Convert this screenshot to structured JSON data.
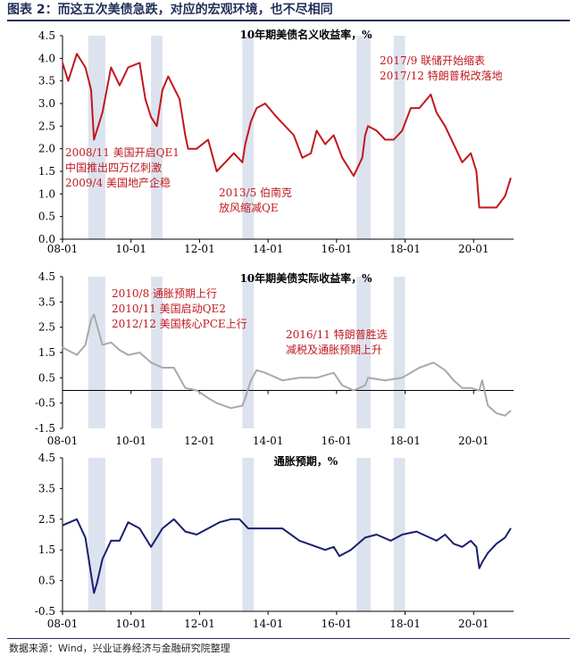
{
  "header": {
    "title": "图表 2：而这五次美债急跌，对应的宏观环境，也不尽相同"
  },
  "footer": {
    "source": "数据来源：Wind，兴业证券经济与金融研究院整理"
  },
  "colors": {
    "nominal": "#c0181e",
    "real": "#a9a9a9",
    "inflation": "#1a1f71",
    "shade": "#dde3ee"
  },
  "chart_data": [
    {
      "type": "line",
      "title": "10年期美债名义收益率，%",
      "x_ticks": [
        "08-01",
        "10-01",
        "12-01",
        "14-01",
        "16-01",
        "18-01",
        "20-01"
      ],
      "xlim": [
        "2008-01",
        "2021-03"
      ],
      "ylim": [
        0,
        4.5
      ],
      "y_ticks": [
        "0.0",
        "0.5",
        "1.0",
        "1.5",
        "2.0",
        "2.5",
        "3.0",
        "3.5",
        "4.0",
        "4.5"
      ],
      "y_tick_values": [
        0,
        0.5,
        1,
        1.5,
        2,
        2.5,
        3,
        3.5,
        4,
        4.5
      ],
      "series": [
        {
          "x": [
            "2008-01",
            "2008-03",
            "2008-06",
            "2008-09",
            "2008-11",
            "2008-12",
            "2009-03",
            "2009-06",
            "2009-09",
            "2009-12",
            "2010-04",
            "2010-06",
            "2010-08",
            "2010-10",
            "2010-12",
            "2011-02",
            "2011-06",
            "2011-08",
            "2011-09",
            "2011-12",
            "2012-04",
            "2012-07",
            "2012-10",
            "2013-01",
            "2013-04",
            "2013-05",
            "2013-07",
            "2013-09",
            "2013-12",
            "2014-04",
            "2014-07",
            "2014-10",
            "2015-01",
            "2015-04",
            "2015-06",
            "2015-09",
            "2015-12",
            "2016-03",
            "2016-07",
            "2016-10",
            "2016-11",
            "2016-12",
            "2017-03",
            "2017-06",
            "2017-09",
            "2017-12",
            "2018-03",
            "2018-06",
            "2018-10",
            "2018-12",
            "2019-03",
            "2019-06",
            "2019-09",
            "2019-12",
            "2020-02",
            "2020-03",
            "2020-06",
            "2020-09",
            "2020-12",
            "2021-02"
          ],
          "y": [
            3.9,
            3.5,
            4.1,
            3.8,
            3.3,
            2.2,
            2.8,
            3.8,
            3.4,
            3.8,
            3.9,
            3.1,
            2.7,
            2.5,
            3.3,
            3.6,
            3.1,
            2.3,
            2.0,
            2.0,
            2.2,
            1.5,
            1.7,
            1.9,
            1.7,
            2.1,
            2.6,
            2.9,
            3.0,
            2.7,
            2.5,
            2.3,
            1.8,
            1.9,
            2.4,
            2.1,
            2.3,
            1.8,
            1.4,
            1.8,
            2.3,
            2.5,
            2.4,
            2.2,
            2.2,
            2.4,
            2.9,
            2.9,
            3.2,
            2.8,
            2.5,
            2.1,
            1.7,
            1.9,
            1.5,
            0.7,
            0.7,
            0.7,
            0.95,
            1.35
          ]
        }
      ]
    },
    {
      "type": "line",
      "title": "10年期美债实际收益率，%",
      "x_ticks": [
        "08-01",
        "10-01",
        "12-01",
        "14-01",
        "16-01",
        "18-01",
        "20-01"
      ],
      "xlim": [
        "2008-01",
        "2021-03"
      ],
      "ylim": [
        -1.5,
        4.5
      ],
      "y_ticks": [
        "-1.5",
        "-0.5",
        "0.5",
        "1.5",
        "2.5",
        "3.5",
        "4.5"
      ],
      "y_tick_values": [
        -1.5,
        -0.5,
        0.5,
        1.5,
        2.5,
        3.5,
        4.5
      ],
      "series": [
        {
          "x": [
            "2008-01",
            "2008-06",
            "2008-09",
            "2008-11",
            "2008-12",
            "2009-03",
            "2009-06",
            "2009-09",
            "2009-12",
            "2010-04",
            "2010-08",
            "2010-12",
            "2011-04",
            "2011-08",
            "2011-12",
            "2012-04",
            "2012-07",
            "2012-12",
            "2013-04",
            "2013-05",
            "2013-07",
            "2013-09",
            "2013-12",
            "2014-06",
            "2014-12",
            "2015-06",
            "2015-12",
            "2016-03",
            "2016-07",
            "2016-11",
            "2016-12",
            "2017-06",
            "2017-12",
            "2018-06",
            "2018-11",
            "2019-03",
            "2019-06",
            "2019-09",
            "2019-12",
            "2020-03",
            "2020-04",
            "2020-06",
            "2020-09",
            "2020-12",
            "2021-02"
          ],
          "y": [
            1.7,
            1.4,
            1.8,
            2.8,
            3.0,
            1.8,
            1.9,
            1.6,
            1.4,
            1.5,
            1.1,
            0.9,
            0.9,
            0.1,
            0.0,
            -0.3,
            -0.5,
            -0.7,
            -0.6,
            -0.3,
            0.4,
            0.8,
            0.7,
            0.4,
            0.5,
            0.5,
            0.7,
            0.2,
            0.0,
            0.2,
            0.5,
            0.4,
            0.5,
            0.9,
            1.1,
            0.8,
            0.4,
            0.1,
            0.1,
            0.0,
            0.4,
            -0.6,
            -0.9,
            -1.0,
            -0.8
          ]
        }
      ]
    },
    {
      "type": "line",
      "title": "通胀预期，%",
      "x_ticks": [
        "08-01",
        "10-01",
        "12-01",
        "14-01",
        "16-01",
        "18-01",
        "20-01"
      ],
      "xlim": [
        "2008-01",
        "2021-03"
      ],
      "ylim": [
        -0.5,
        4.5
      ],
      "y_ticks": [
        "-0.5",
        "0.5",
        "1.5",
        "2.5",
        "3.5",
        "4.5"
      ],
      "y_tick_values": [
        -0.5,
        0.5,
        1.5,
        2.5,
        3.5,
        4.5
      ],
      "series": [
        {
          "x": [
            "2008-01",
            "2008-06",
            "2008-09",
            "2008-11",
            "2008-12",
            "2009-01",
            "2009-03",
            "2009-06",
            "2009-09",
            "2009-12",
            "2010-04",
            "2010-08",
            "2010-12",
            "2011-04",
            "2011-08",
            "2011-12",
            "2012-04",
            "2012-08",
            "2012-12",
            "2013-03",
            "2013-06",
            "2013-09",
            "2013-12",
            "2014-06",
            "2014-12",
            "2015-03",
            "2015-09",
            "2015-12",
            "2016-02",
            "2016-06",
            "2016-11",
            "2017-03",
            "2017-08",
            "2017-12",
            "2018-05",
            "2018-12",
            "2019-03",
            "2019-06",
            "2019-09",
            "2019-12",
            "2020-02",
            "2020-03",
            "2020-04",
            "2020-06",
            "2020-09",
            "2020-12",
            "2021-02"
          ],
          "y": [
            2.3,
            2.5,
            1.9,
            0.7,
            0.1,
            0.4,
            1.2,
            1.8,
            1.8,
            2.4,
            2.2,
            1.6,
            2.2,
            2.5,
            2.1,
            2.0,
            2.2,
            2.4,
            2.5,
            2.5,
            2.2,
            2.2,
            2.2,
            2.2,
            1.8,
            1.7,
            1.5,
            1.6,
            1.3,
            1.5,
            1.9,
            2.0,
            1.8,
            2.0,
            2.1,
            1.8,
            2.0,
            1.7,
            1.6,
            1.8,
            1.6,
            0.9,
            1.1,
            1.4,
            1.7,
            1.9,
            2.2
          ]
        }
      ]
    }
  ],
  "shade_periods": [
    {
      "start": "2008-10",
      "end": "2009-04"
    },
    {
      "start": "2010-08",
      "end": "2010-12"
    },
    {
      "start": "2013-04",
      "end": "2013-08"
    },
    {
      "start": "2016-08",
      "end": "2017-01"
    },
    {
      "start": "2017-09",
      "end": "2018-01"
    }
  ],
  "annotations": {
    "nominal": [
      {
        "lines": [
          "2008/11 美国开启QE1",
          "中国推出四万亿刺激",
          "2009/4 美国地产企稳"
        ]
      },
      {
        "lines": [
          "2013/5 伯南克",
          "放风缩减QE"
        ]
      },
      {
        "lines": [
          "2017/9  联储开始缩表",
          "2017/12 特朗普税改落地"
        ]
      }
    ],
    "real": [
      {
        "lines": [
          "2010/8 通胀预期上行",
          "2010/11 美国启动QE2",
          "2012/12 美国核心PCE上行"
        ]
      },
      {
        "lines": [
          "2016/11 特朗普胜选",
          "减税及通胀预期上升"
        ]
      }
    ]
  }
}
